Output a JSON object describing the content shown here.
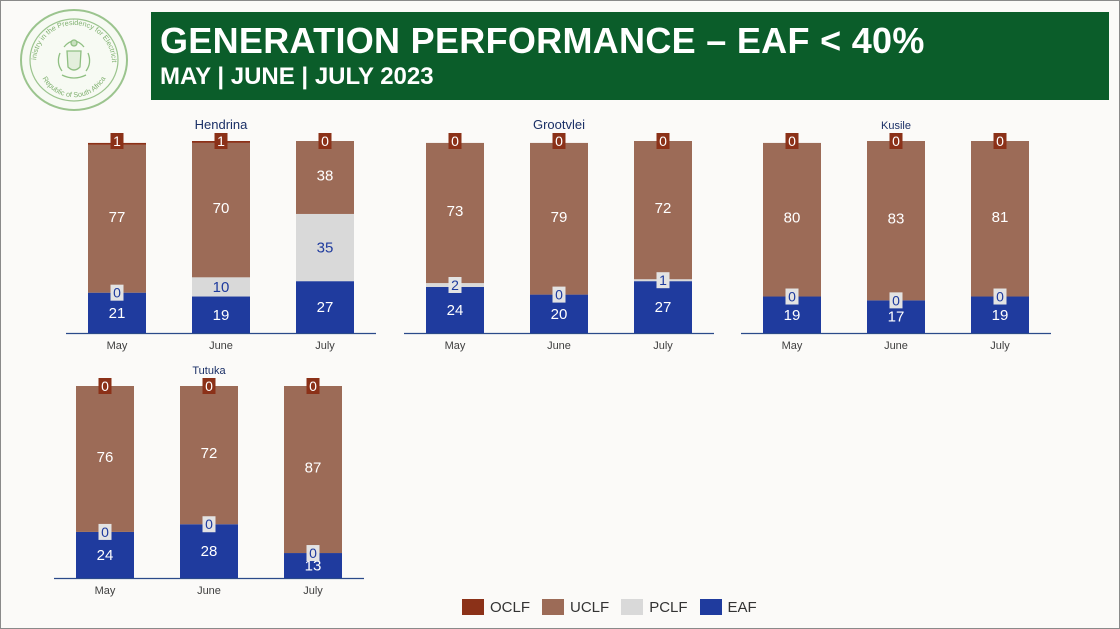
{
  "header": {
    "title": "GENERATION PERFORMANCE – EAF < 40%",
    "subtitle": "MAY | JUNE | JULY 2023"
  },
  "seal": {
    "top_text": "Ministry in the Presidency for Electricity",
    "bottom_text": "Republic of South Africa"
  },
  "legend": [
    {
      "label": "OCLF",
      "color": "#8b3118"
    },
    {
      "label": "UCLF",
      "color": "#9c6b57"
    },
    {
      "label": "PCLF",
      "color": "#d9d9d9"
    },
    {
      "label": "EAF",
      "color": "#1f3b9e"
    }
  ],
  "chart_data": [
    {
      "type": "bar",
      "stacked": true,
      "title": "Hendrina",
      "categories": [
        "May",
        "June",
        "July"
      ],
      "series": [
        {
          "name": "EAF",
          "values": [
            21,
            19,
            27
          ]
        },
        {
          "name": "PCLF",
          "values": [
            0,
            10,
            35
          ]
        },
        {
          "name": "UCLF",
          "values": [
            77,
            70,
            38
          ]
        },
        {
          "name": "OCLF",
          "values": [
            1,
            1,
            0
          ]
        }
      ]
    },
    {
      "type": "bar",
      "stacked": true,
      "title": "Grootvlei",
      "categories": [
        "May",
        "June",
        "July"
      ],
      "series": [
        {
          "name": "EAF",
          "values": [
            24,
            20,
            27
          ]
        },
        {
          "name": "PCLF",
          "values": [
            2,
            0,
            1
          ]
        },
        {
          "name": "UCLF",
          "values": [
            73,
            79,
            72
          ]
        },
        {
          "name": "OCLF",
          "values": [
            0,
            0,
            0
          ]
        }
      ]
    },
    {
      "type": "bar",
      "stacked": true,
      "title": "Kusile",
      "categories": [
        "May",
        "June",
        "July"
      ],
      "series": [
        {
          "name": "EAF",
          "values": [
            19,
            17,
            19
          ]
        },
        {
          "name": "PCLF",
          "values": [
            0,
            0,
            0
          ]
        },
        {
          "name": "UCLF",
          "values": [
            80,
            83,
            81
          ]
        },
        {
          "name": "OCLF",
          "values": [
            0,
            0,
            0
          ]
        }
      ]
    },
    {
      "type": "bar",
      "stacked": true,
      "title": "Tutuka",
      "categories": [
        "May",
        "June",
        "July"
      ],
      "series": [
        {
          "name": "EAF",
          "values": [
            24,
            28,
            13
          ]
        },
        {
          "name": "PCLF",
          "values": [
            0,
            0,
            0
          ]
        },
        {
          "name": "UCLF",
          "values": [
            76,
            72,
            87
          ]
        },
        {
          "name": "OCLF",
          "values": [
            0,
            0,
            0
          ]
        }
      ]
    }
  ]
}
